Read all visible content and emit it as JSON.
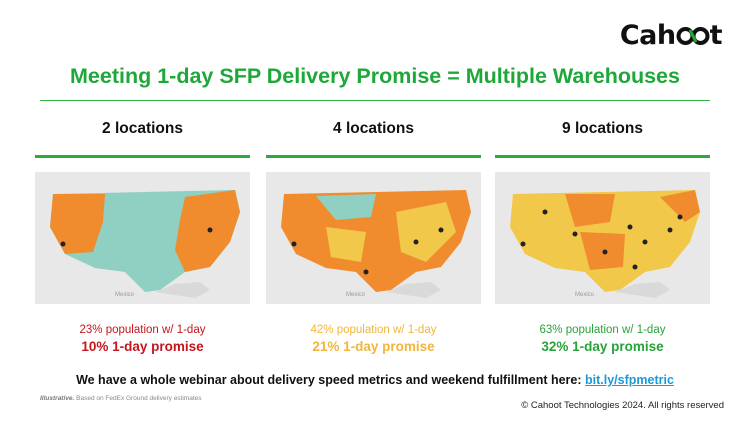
{
  "logo": {
    "text_before": "Cah",
    "text_after": "t"
  },
  "title": "Meeting 1-day SFP Delivery Promise = Multiple Warehouses",
  "columns": [
    {
      "heading": "2 locations",
      "population": "23% population w/ 1-day",
      "promise": "10% 1-day promise",
      "color": "#c4161c",
      "map_label": "Mexico",
      "warehouses": 2
    },
    {
      "heading": "4 locations",
      "population": "42% population w/ 1-day",
      "promise": "21% 1-day promise",
      "color": "#f2b53a",
      "map_label": "Mexico",
      "warehouses": 4
    },
    {
      "heading": "9 locations",
      "population": "63% population w/ 1-day",
      "promise": "32% 1-day promise",
      "color": "#27a33a",
      "map_label": "Mexico",
      "warehouses": 9
    }
  ],
  "webinar": {
    "text": "We have a whole webinar about delivery speed metrics and weekend fulfillment here: ",
    "link": "bit.ly/sfpmetric"
  },
  "note": {
    "bold": "Illustrative.",
    "rest": " Based on FedEx Ground delivery estimates"
  },
  "copyright": "© Cahoot Technologies 2024. All rights reserved",
  "colors": {
    "green": "#1fa83a",
    "orange": "#f08c2e",
    "yellow": "#f2c84b",
    "teal": "#8fd0c2",
    "link": "#1a9ad6"
  }
}
